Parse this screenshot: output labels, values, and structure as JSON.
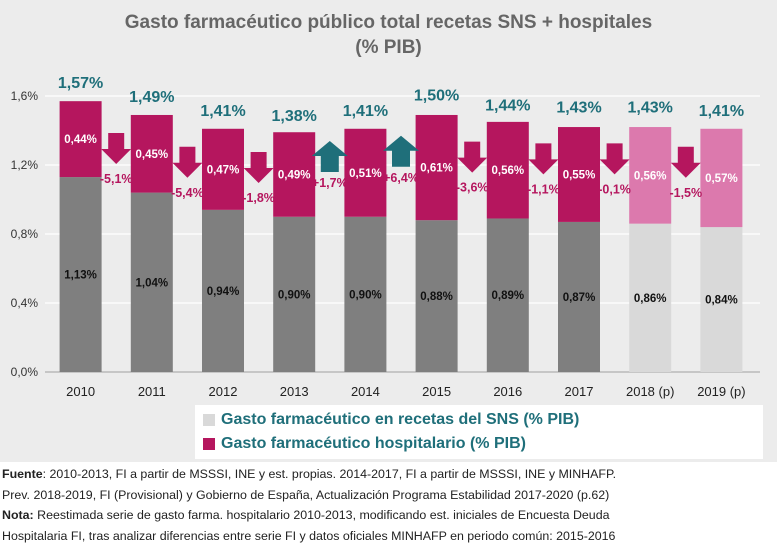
{
  "title_line1": "Gasto farmacéutico público total recetas SNS + hospitales",
  "title_line2": "(% PIB)",
  "colors": {
    "recetas": "#7f7f7f",
    "recetas_projected": "#d9d9d9",
    "hospital": "#b5165e",
    "hospital_projected": "#dc79ad",
    "arrow_down": "#b5165e",
    "arrow_up": "#1f6f7a",
    "total_label": "#1f6f7a",
    "legend_recetas": "#d9d9d9",
    "legend_hospital": "#b5165e"
  },
  "chart_data": {
    "type": "bar",
    "stacked": true,
    "categories": [
      "2010",
      "2011",
      "2012",
      "2013",
      "2014",
      "2015",
      "2016",
      "2017",
      "2018 (p)",
      "2019 (p)"
    ],
    "series": [
      {
        "name": "Gasto farmacéutico en recetas del SNS (% PIB)",
        "values": [
          1.13,
          1.04,
          0.94,
          0.9,
          0.9,
          0.88,
          0.89,
          0.87,
          0.86,
          0.84
        ],
        "labels": [
          "1,13%",
          "1,04%",
          "0,94%",
          "0,90%",
          "0,90%",
          "0,88%",
          "0,89%",
          "0,87%",
          "0,86%",
          "0,84%"
        ]
      },
      {
        "name": "Gasto farmacéutico hospitalario (% PIB)",
        "values": [
          0.44,
          0.45,
          0.47,
          0.49,
          0.51,
          0.61,
          0.56,
          0.55,
          0.56,
          0.57
        ],
        "labels": [
          "0,44%",
          "0,45%",
          "0,47%",
          "0,49%",
          "0,51%",
          "0,61%",
          "0,56%",
          "0,55%",
          "0,56%",
          "0,57%"
        ]
      }
    ],
    "totals": [
      1.57,
      1.49,
      1.41,
      1.38,
      1.41,
      1.5,
      1.44,
      1.43,
      1.43,
      1.41
    ],
    "total_labels": [
      "1,57%",
      "1,49%",
      "1,41%",
      "1,38%",
      "1,41%",
      "1,50%",
      "1,44%",
      "1,43%",
      "1,43%",
      "1,41%"
    ],
    "projected": [
      false,
      false,
      false,
      false,
      false,
      false,
      false,
      false,
      true,
      true
    ],
    "changes": [
      {
        "between": [
          "2010",
          "2011"
        ],
        "value": -5.1,
        "label": "-5,1%",
        "direction": "down"
      },
      {
        "between": [
          "2011",
          "2012"
        ],
        "value": -5.4,
        "label": "-5,4%",
        "direction": "down"
      },
      {
        "between": [
          "2012",
          "2013"
        ],
        "value": -1.8,
        "label": "-1,8%",
        "direction": "down"
      },
      {
        "between": [
          "2013",
          "2014"
        ],
        "value": 1.7,
        "label": "+1,7%",
        "direction": "up"
      },
      {
        "between": [
          "2014",
          "2015"
        ],
        "value": 6.4,
        "label": "+6,4%",
        "direction": "up"
      },
      {
        "between": [
          "2015",
          "2016"
        ],
        "value": -3.6,
        "label": "-3,6%",
        "direction": "down"
      },
      {
        "between": [
          "2016",
          "2017"
        ],
        "value": -1.1,
        "label": "-1,1%",
        "direction": "down"
      },
      {
        "between": [
          "2017",
          "2018 (p)"
        ],
        "value": -0.1,
        "label": "-0,1%",
        "direction": "down"
      },
      {
        "between": [
          "2018 (p)",
          "2019 (p)"
        ],
        "value": -1.5,
        "label": "-1,5%",
        "direction": "down"
      }
    ],
    "yticks": [
      0.0,
      0.4,
      0.8,
      1.2,
      1.6
    ],
    "ytick_labels": [
      "0,0%",
      "0,4%",
      "0,8%",
      "1,2%",
      "1,6%"
    ],
    "ylim": [
      0,
      1.6
    ],
    "grid": true,
    "legend_position": "bottom"
  },
  "legend": {
    "recetas": "Gasto farmacéutico en recetas del SNS (% PIB)",
    "hospital": "Gasto farmacéutico hospitalario (% PIB)"
  },
  "notes": {
    "fuente_lead": "Fuente",
    "fuente_text": ": 2010-2013, FI a partir de MSSSI, INE y est. propias. 2014-2017, FI a partir de MSSSI, INE y MINHAFP.",
    "fuente_line2": "Prev. 2018-2019, FI (Provisional) y Gobierno de España, Actualización Programa Estabilidad 2017-2020 (p.62)",
    "nota_lead": "Nota:",
    "nota_text": " Reestimada serie de gasto farma. hospitalario 2010-2013, modificando est. iniciales de Encuesta Deuda",
    "nota_line2": "Hospitalaria FI, tras analizar diferencias entre serie FI y datos oficiales MINHAFP en periodo común: 2015-2016"
  }
}
